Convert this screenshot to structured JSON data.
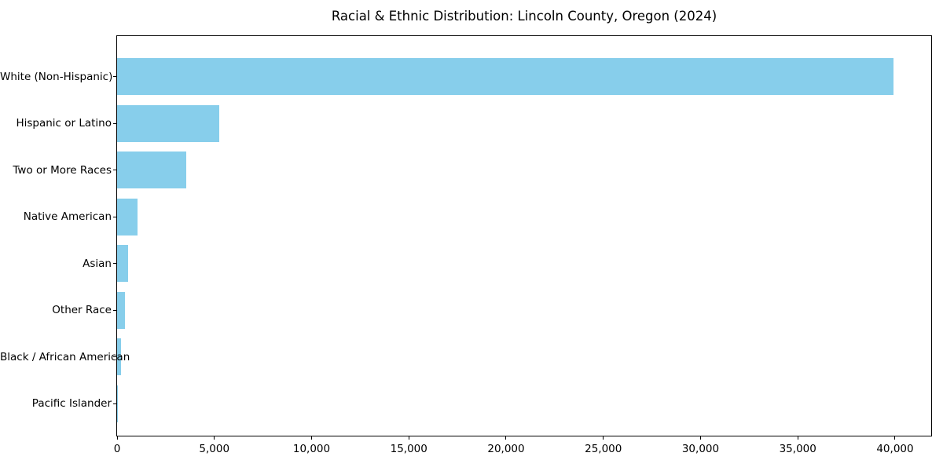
{
  "title": "Racial & Ethnic Distribution: Lincoln County, Oregon (2024)",
  "colors": {
    "bar": "#87CEEB",
    "axis": "#000000",
    "text": "#000000",
    "background": "#FFFFFF"
  },
  "chart_data": {
    "type": "bar",
    "orientation": "horizontal",
    "title": "Racial & Ethnic Distribution: Lincoln County, Oregon (2024)",
    "categories": [
      "White (Non-Hispanic)",
      "Hispanic or Latino",
      "Two or More Races",
      "Native American",
      "Asian",
      "Other Race",
      "Black / African American",
      "Pacific Islander"
    ],
    "values": [
      39900,
      5250,
      3550,
      1040,
      560,
      400,
      200,
      60
    ],
    "bar_color": "#87CEEB",
    "xlabel": "",
    "ylabel": "",
    "xlim": [
      0,
      41900
    ],
    "xticks": [
      0,
      5000,
      10000,
      15000,
      20000,
      25000,
      30000,
      35000,
      40000
    ],
    "xtick_labels": [
      "0",
      "5,000",
      "10,000",
      "15,000",
      "20,000",
      "25,000",
      "30,000",
      "35,000",
      "40,000"
    ],
    "grid": false,
    "legend": null,
    "frame": "all-four-spines"
  }
}
